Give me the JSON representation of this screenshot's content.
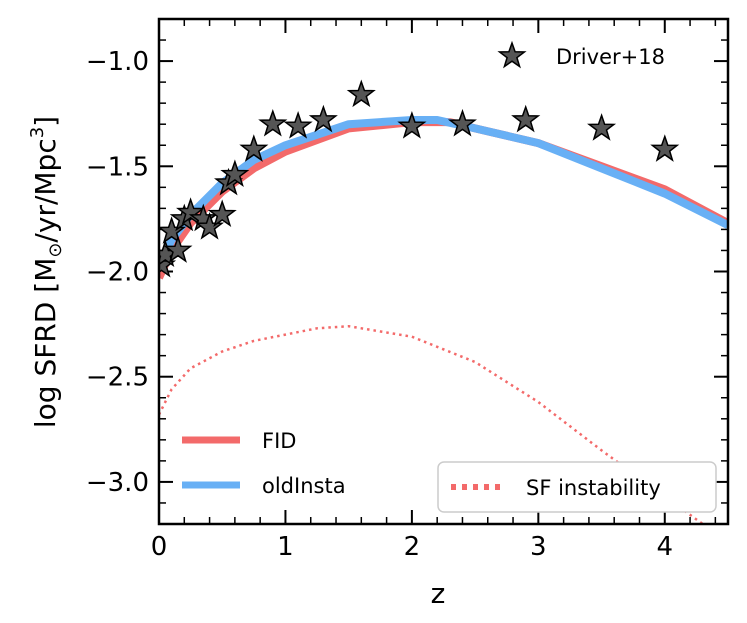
{
  "chart_data": {
    "type": "line",
    "xlabel": "z",
    "ylabel": "log SFRD [M⊙/yr/Mpc³]",
    "ylabel_parts": {
      "main": "log SFRD [M",
      "sub": "⊙",
      "mid": "/yr/Mpc",
      "sup": "3",
      "end": "]"
    },
    "xlim": [
      0,
      4.5
    ],
    "ylim": [
      -3.2,
      -0.8
    ],
    "x_ticks": [
      0,
      1,
      2,
      3,
      4
    ],
    "x_tick_labels": [
      "0",
      "1",
      "2",
      "3",
      "4"
    ],
    "y_ticks": [
      -1.0,
      -1.5,
      -2.0,
      -2.5,
      -3.0
    ],
    "y_tick_labels": [
      "−1.0",
      "−1.5",
      "−2.0",
      "−2.5",
      "−3.0"
    ],
    "grid": false,
    "series": [
      {
        "name": "FID",
        "style": "solid",
        "color": "#f36a6a",
        "x": [
          0,
          0.1,
          0.25,
          0.5,
          0.75,
          1.0,
          1.5,
          2.0,
          2.3,
          2.5,
          3.0,
          3.5,
          4.0,
          4.5
        ],
        "y": [
          -2.03,
          -1.9,
          -1.77,
          -1.62,
          -1.51,
          -1.43,
          -1.32,
          -1.29,
          -1.29,
          -1.32,
          -1.39,
          -1.5,
          -1.61,
          -1.77
        ]
      },
      {
        "name": "oldInsta",
        "style": "solid",
        "color": "#68b0f5",
        "x": [
          0,
          0.1,
          0.25,
          0.5,
          0.75,
          1.0,
          1.5,
          2.0,
          2.2,
          2.5,
          3.0,
          3.5,
          4.0,
          4.5
        ],
        "y": [
          -1.98,
          -1.85,
          -1.73,
          -1.58,
          -1.47,
          -1.4,
          -1.3,
          -1.28,
          -1.28,
          -1.32,
          -1.39,
          -1.51,
          -1.63,
          -1.78
        ]
      },
      {
        "name": "SF instability",
        "style": "dotted",
        "color": "#f36a6a",
        "x": [
          0,
          0.1,
          0.25,
          0.5,
          0.75,
          1.0,
          1.25,
          1.5,
          2.0,
          2.5,
          3.0,
          3.5,
          4.0,
          4.3
        ],
        "y": [
          -2.68,
          -2.56,
          -2.46,
          -2.38,
          -2.33,
          -2.3,
          -2.27,
          -2.26,
          -2.31,
          -2.43,
          -2.62,
          -2.85,
          -3.07,
          -3.2
        ]
      }
    ],
    "scatter": {
      "name": "Driver+18",
      "marker": "star",
      "color": "#555555",
      "x": [
        0.02,
        0.05,
        0.1,
        0.15,
        0.2,
        0.25,
        0.35,
        0.4,
        0.5,
        0.55,
        0.6,
        0.75,
        0.9,
        1.1,
        1.3,
        1.6,
        2.0,
        2.4,
        2.9,
        3.5,
        4.0
      ],
      "y": [
        -1.97,
        -1.92,
        -1.81,
        -1.9,
        -1.75,
        -1.72,
        -1.75,
        -1.79,
        -1.73,
        -1.58,
        -1.54,
        -1.42,
        -1.3,
        -1.31,
        -1.28,
        -1.16,
        -1.31,
        -1.3,
        -1.28,
        -1.32,
        -1.42
      ]
    },
    "legends": {
      "top_right": [
        "Driver+18"
      ],
      "lower_left": [
        "FID",
        "oldInsta"
      ],
      "lower_right": [
        "SF instability"
      ]
    }
  }
}
